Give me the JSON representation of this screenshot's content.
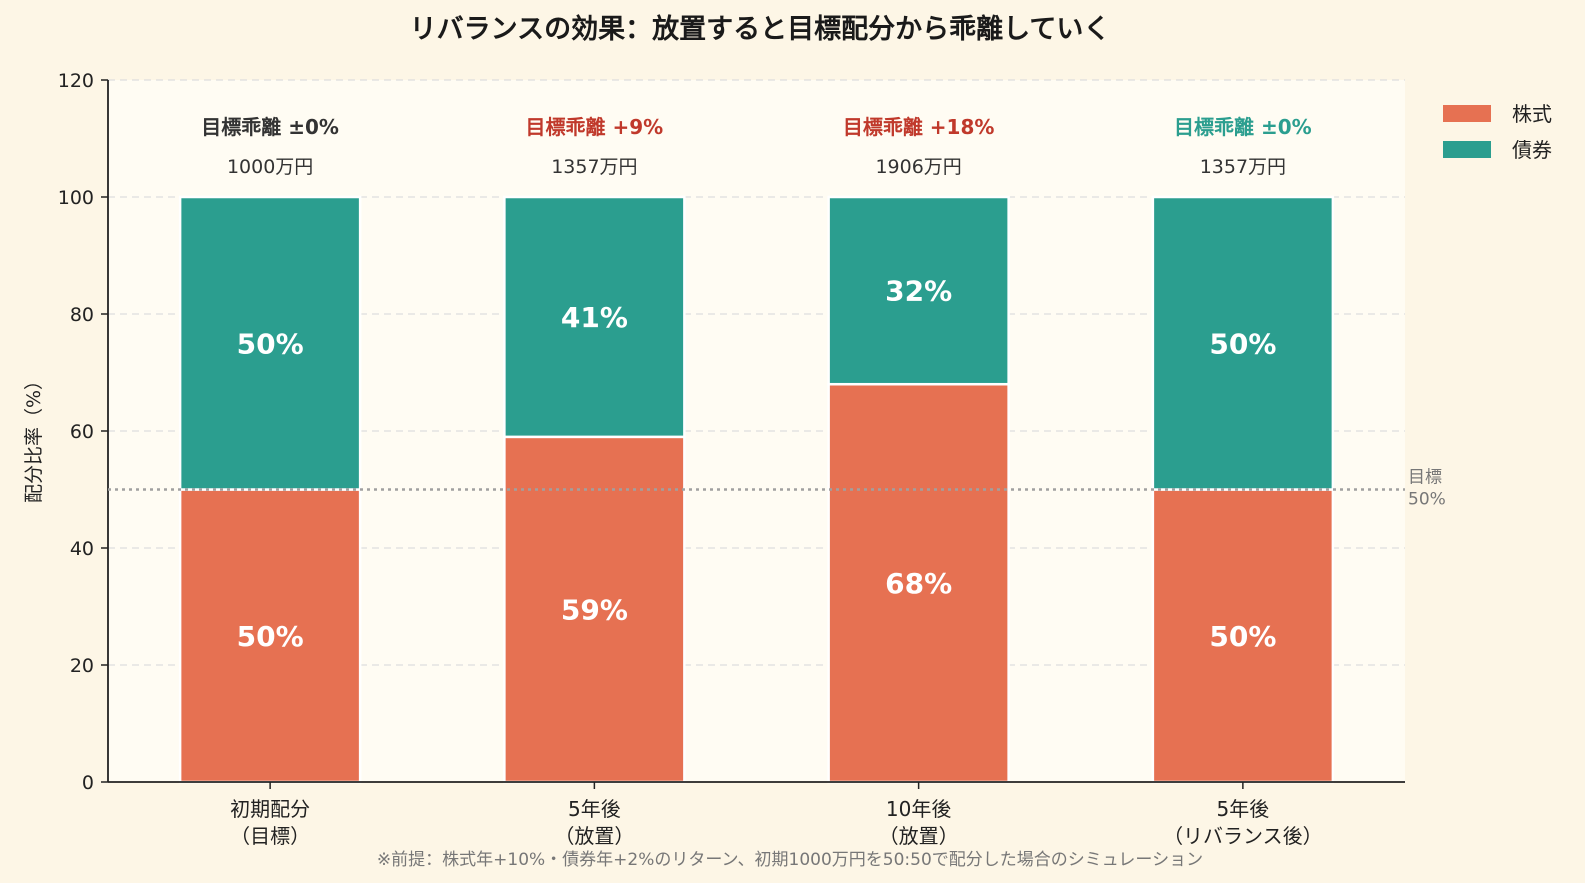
{
  "chart_data": {
    "type": "bar",
    "stacked": true,
    "title": "リバランスの効果：放置すると目標配分から乖離していく",
    "ylabel": "配分比率（%）",
    "xlabel": "",
    "ylim": [
      0,
      120
    ],
    "yticks": [
      0,
      20,
      40,
      60,
      80,
      100,
      120
    ],
    "grid": true,
    "legend_position": "top-right",
    "categories": [
      [
        "初期配分",
        "（目標）"
      ],
      [
        "5年後",
        "（放置）"
      ],
      [
        "10年後",
        "（放置）"
      ],
      [
        "5年後",
        "（リバランス後）"
      ]
    ],
    "series": [
      {
        "name": "株式",
        "color": "#e67152",
        "values": [
          50,
          59,
          68,
          50
        ],
        "labels": [
          "50%",
          "59%",
          "68%",
          "50%"
        ]
      },
      {
        "name": "債券",
        "color": "#2b9e8f",
        "values": [
          50,
          41,
          32,
          50
        ],
        "labels": [
          "50%",
          "41%",
          "32%",
          "50%"
        ]
      }
    ],
    "deviation_labels": [
      {
        "text": "目標乖離 ±0%",
        "color": "#333333"
      },
      {
        "text": "目標乖離 +9%",
        "color": "#c0392b"
      },
      {
        "text": "目標乖離 +18%",
        "color": "#c0392b"
      },
      {
        "text": "目標乖離 ±0%",
        "color": "#2b9e8f"
      }
    ],
    "totals": [
      "1000万円",
      "1357万円",
      "1906万円",
      "1357万円"
    ],
    "target_line": {
      "value": 50,
      "label": [
        "目標",
        "50%"
      ]
    },
    "footnote": "※前提：株式年+10%・債券年+2%のリターン、初期1000万円を50:50で配分した場合のシミュレーション"
  }
}
